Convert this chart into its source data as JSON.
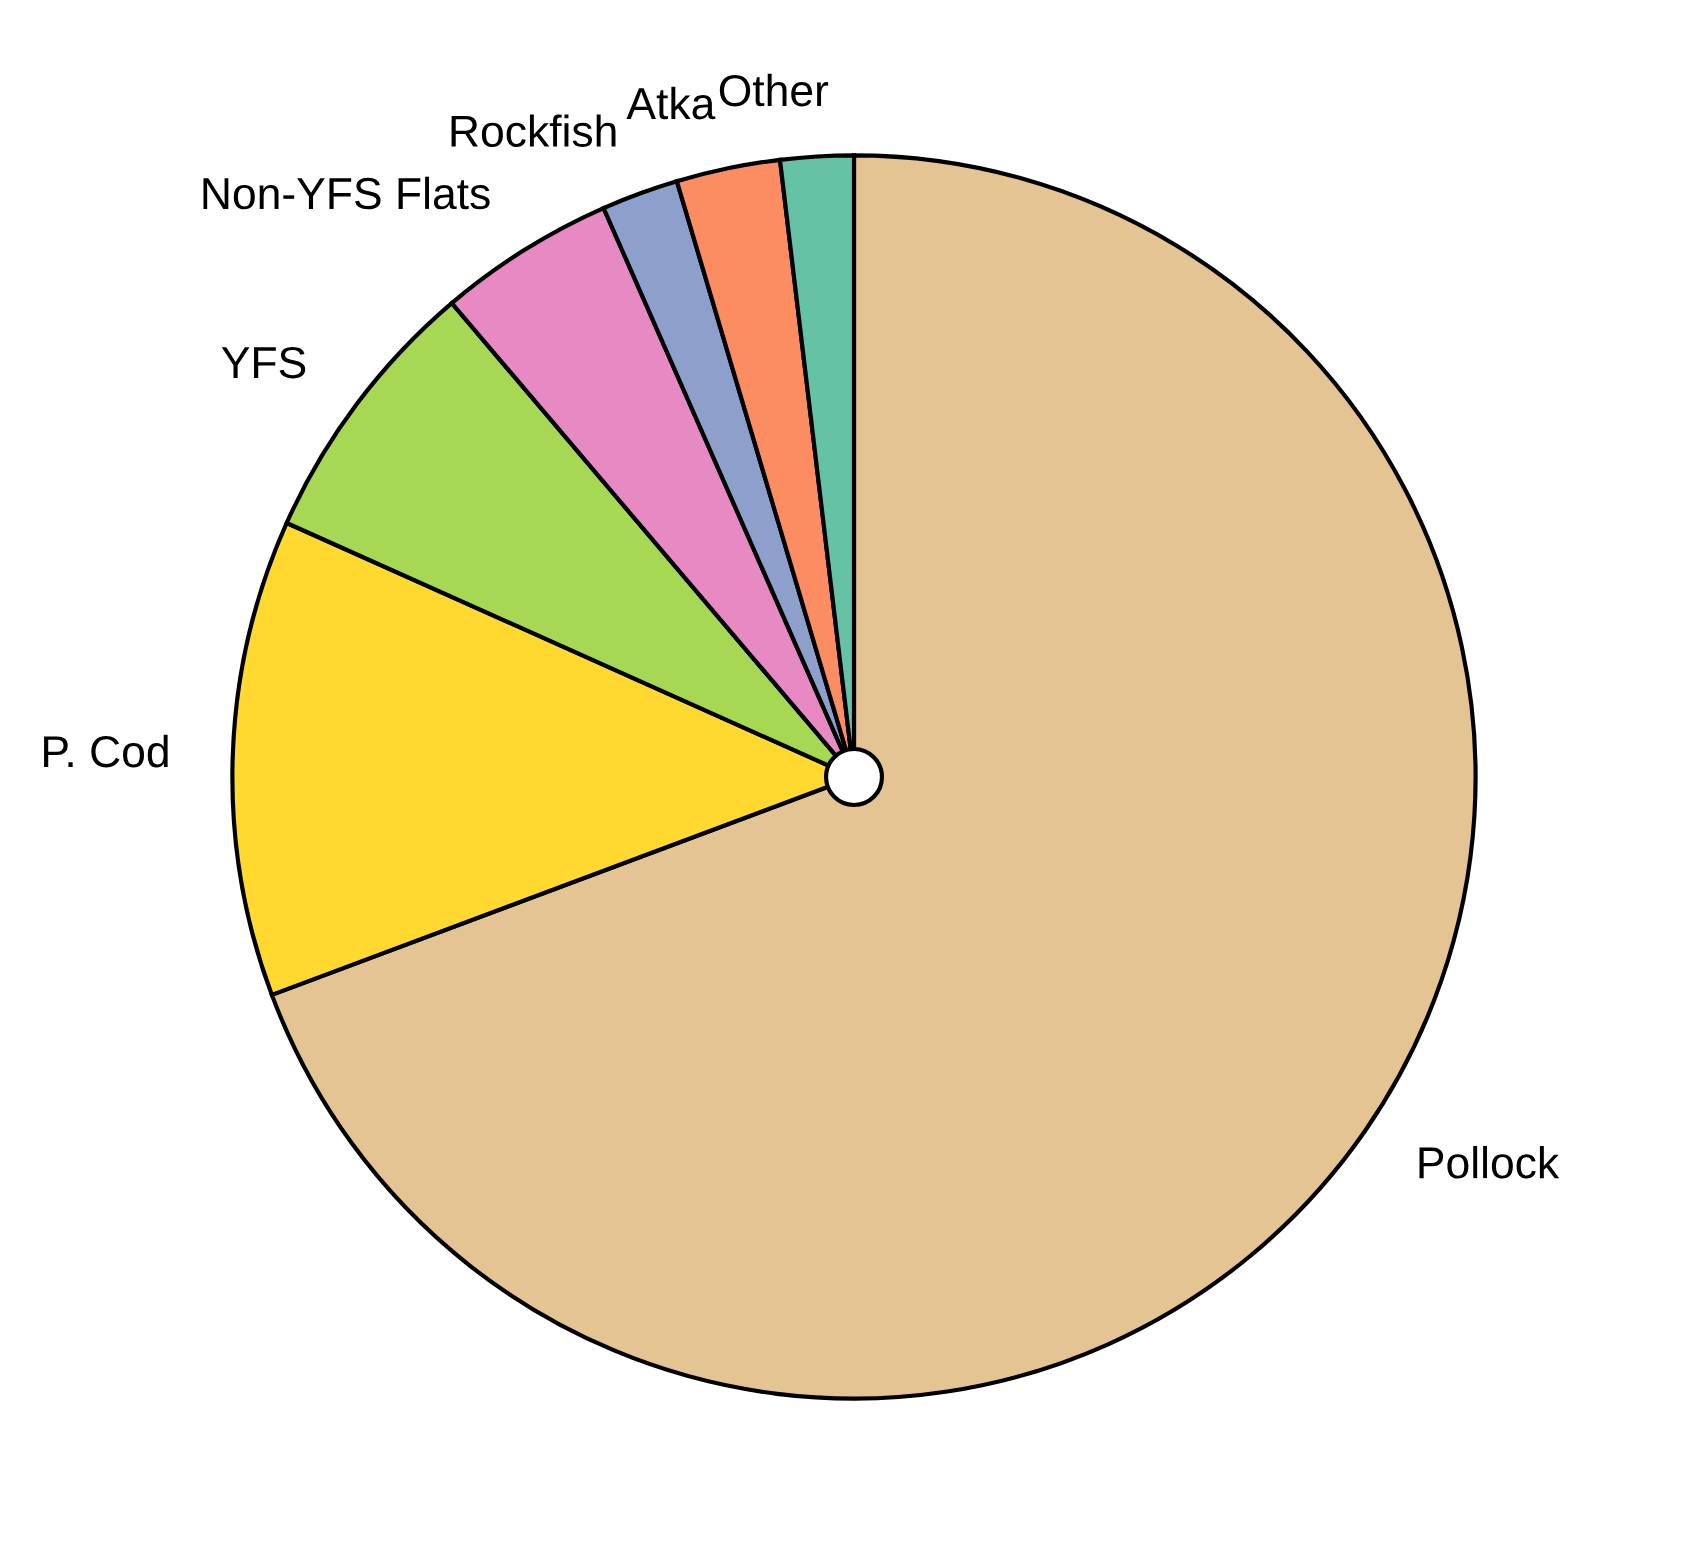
{
  "chart_data": {
    "type": "pie",
    "categories": [
      "Pollock",
      "P. Cod",
      "YFS",
      "Non-YFS Flats",
      "Rockfish",
      "Atka",
      "Other"
    ],
    "values": [
      69.3,
      12.4,
      7.1,
      4.6,
      2.0,
      2.7,
      1.9
    ],
    "colors": [
      "#e5c494",
      "#ffd92f",
      "#a6d854",
      "#e78ac3",
      "#8da0cb",
      "#fc8d62",
      "#66c2a5"
    ]
  }
}
